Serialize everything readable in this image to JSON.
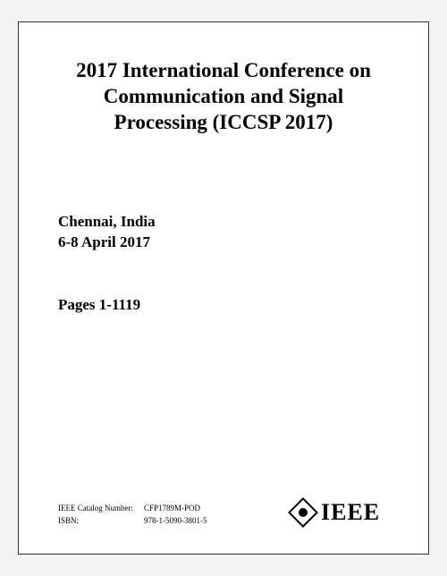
{
  "colors": {
    "page_bg": "#ffffff",
    "outer_bg": "#f2f2f2",
    "border": "#333333",
    "text": "#000000"
  },
  "typography": {
    "title_fontsize_pt": 17,
    "body_fontsize_pt": 13,
    "catalog_fontsize_pt": 7,
    "font_family": "Times New Roman"
  },
  "title": "2017 International Conference on Communication and Signal Processing (ICCSP 2017)",
  "location": {
    "place": "Chennai, India",
    "dates": "6-8 April 2017"
  },
  "pages": "Pages 1-1119",
  "catalog": {
    "label1": "IEEE Catalog Number:",
    "value1": "CFP1789M-POD",
    "label2": "ISBN:",
    "value2": "978-1-5090-3801-5"
  },
  "logo": {
    "text": "IEEE",
    "mark_name": "ieee-diamond-mark"
  }
}
